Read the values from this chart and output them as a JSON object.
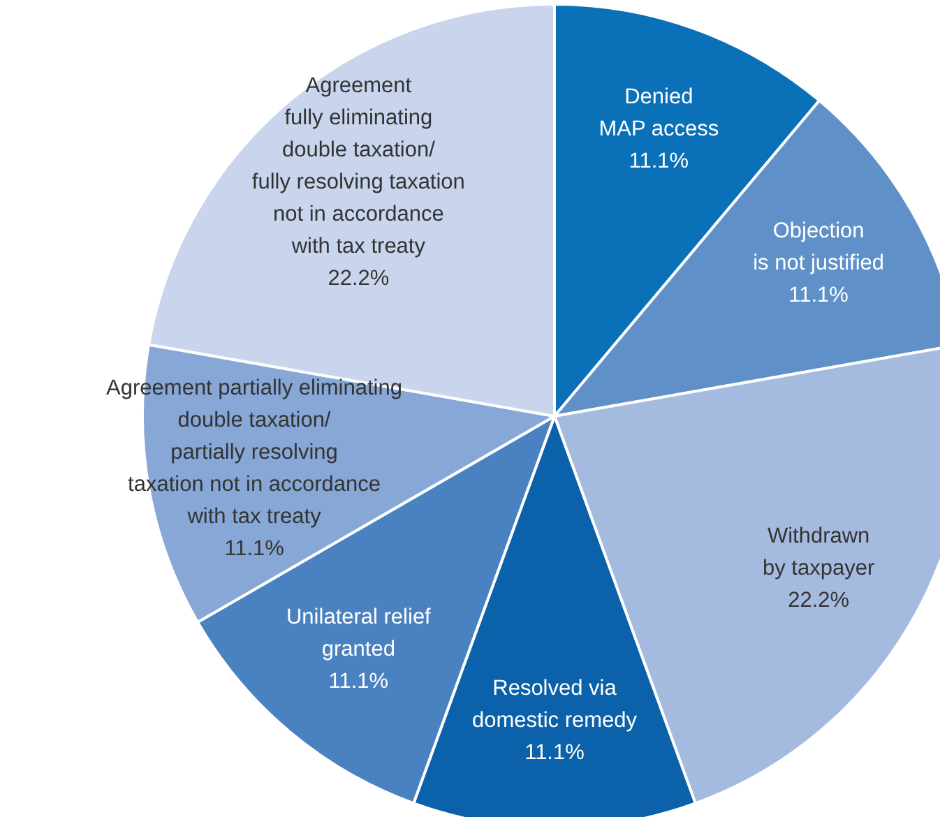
{
  "chart_data": {
    "type": "pie",
    "categories": [
      "Denied\nMAP access",
      "Objection\nis not justified",
      "Withdrawn\nby taxpayer",
      "Resolved via\ndomestic remedy",
      "Unilateral relief\ngranted",
      "Agreement partially eliminating\ndouble taxation/\npartially resolving\ntaxation not in accordance\nwith tax treaty",
      "Agreement\nfully eliminating\ndouble taxation/\nfully resolving taxation\nnot in accordance\nwith tax treaty"
    ],
    "values": [
      11.1,
      11.1,
      22.2,
      11.1,
      11.1,
      11.1,
      22.2
    ],
    "value_labels": [
      "11.1%",
      "11.1%",
      "22.2%",
      "11.1%",
      "11.1%",
      "11.1%",
      "22.2%"
    ],
    "colors": [
      "#0a70b8",
      "#6090c8",
      "#a4badf",
      "#0b62aa",
      "#4a82c1",
      "#87a7d7",
      "#c9d5ec"
    ],
    "legend": false
  }
}
